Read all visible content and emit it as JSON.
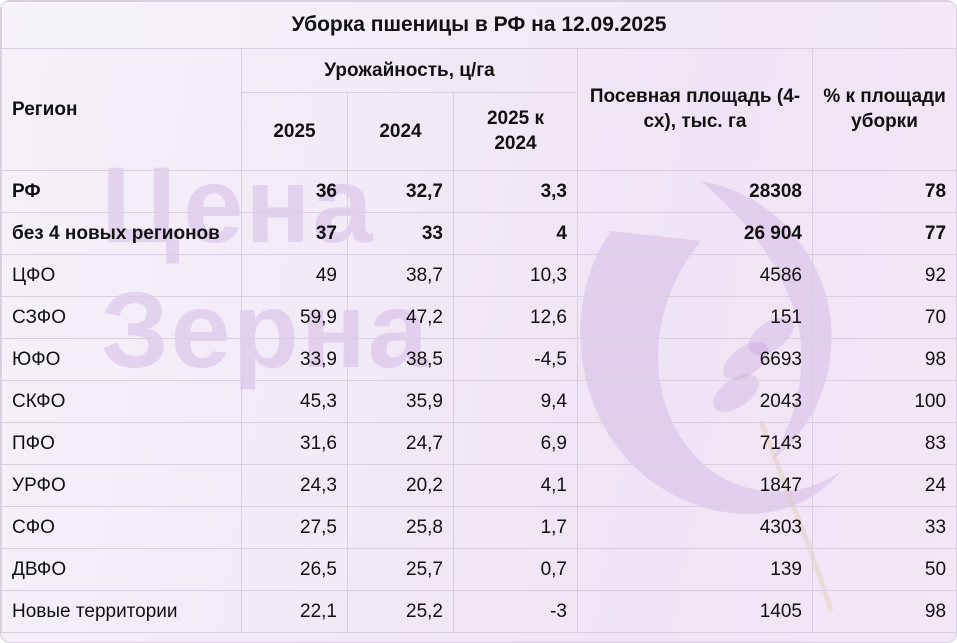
{
  "title": "Уборка пшеницы в РФ на 12.09.2025",
  "headers": {
    "region": "Регион",
    "yield_group": "Урожайность, ц/га",
    "y2025": "2025",
    "y2024": "2024",
    "diff": "2025 к 2024",
    "area": "Посевная площадь (4-сх), тыс. га",
    "pct": "% к площади уборки"
  },
  "rows": [
    {
      "region": "РФ",
      "y2025": "36",
      "y2024": "32,7",
      "diff": "3,3",
      "area": "28308",
      "pct": "78",
      "bold": true
    },
    {
      "region": "без 4 новых регионов",
      "y2025": "37",
      "y2024": "33",
      "diff": "4",
      "area": "26 904",
      "pct": "77",
      "bold": true
    },
    {
      "region": "ЦФО",
      "y2025": "49",
      "y2024": "38,7",
      "diff": "10,3",
      "area": "4586",
      "pct": "92"
    },
    {
      "region": "СЗФО",
      "y2025": "59,9",
      "y2024": "47,2",
      "diff": "12,6",
      "area": "151",
      "pct": "70"
    },
    {
      "region": "ЮФО",
      "y2025": "33,9",
      "y2024": "38,5",
      "diff": "-4,5",
      "area": "6693",
      "pct": "98"
    },
    {
      "region": "СКФО",
      "y2025": "45,3",
      "y2024": "35,9",
      "diff": "9,4",
      "area": "2043",
      "pct": "100"
    },
    {
      "region": "ПФО",
      "y2025": "31,6",
      "y2024": "24,7",
      "diff": "6,9",
      "area": "7143",
      "pct": "83"
    },
    {
      "region": "УРФО",
      "y2025": "24,3",
      "y2024": "20,2",
      "diff": "4,1",
      "area": "1847",
      "pct": "24"
    },
    {
      "region": "СФО",
      "y2025": "27,5",
      "y2024": "25,8",
      "diff": "1,7",
      "area": "4303",
      "pct": "33"
    },
    {
      "region": "ДВФО",
      "y2025": "26,5",
      "y2024": "25,7",
      "diff": "0,7",
      "area": "139",
      "pct": "50"
    },
    {
      "region": "Новые территории",
      "y2025": "22,1",
      "y2024": "25,2",
      "diff": "-3",
      "area": "1405",
      "pct": "98"
    }
  ],
  "watermark": {
    "line1": "Цена",
    "line2": "Зерна",
    "color": "#c8a0dc"
  }
}
